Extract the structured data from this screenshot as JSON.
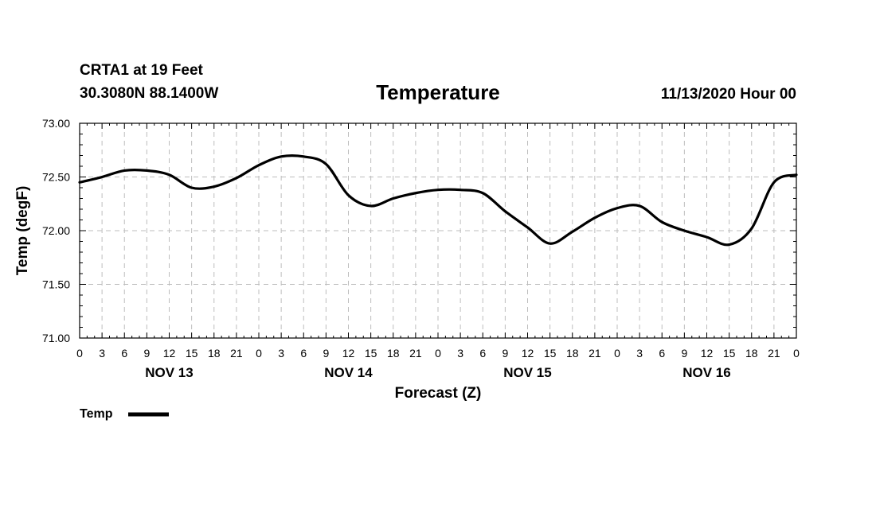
{
  "header": {
    "station": "CRTA1 at 19 Feet",
    "location": "30.3080N 88.1400W",
    "issued": "11/13/2020 Hour 00"
  },
  "chart_data": {
    "type": "line",
    "title": "Temperature",
    "xlabel": "Forecast (Z)",
    "ylabel": "Temp (degF)",
    "xlim": [
      0,
      96
    ],
    "ylim": [
      71.0,
      73.0
    ],
    "y_ticks": [
      "71.00",
      "71.50",
      "72.00",
      "72.50",
      "73.00"
    ],
    "y_tick_values": [
      71.0,
      71.5,
      72.0,
      72.5,
      73.0
    ],
    "x_ticks": [
      {
        "hour": 0,
        "label": "0"
      },
      {
        "hour": 3,
        "label": "3"
      },
      {
        "hour": 6,
        "label": "6"
      },
      {
        "hour": 9,
        "label": "9"
      },
      {
        "hour": 12,
        "label": "12"
      },
      {
        "hour": 15,
        "label": "15"
      },
      {
        "hour": 18,
        "label": "18"
      },
      {
        "hour": 21,
        "label": "21"
      },
      {
        "hour": 24,
        "label": "0"
      },
      {
        "hour": 27,
        "label": "3"
      },
      {
        "hour": 30,
        "label": "6"
      },
      {
        "hour": 33,
        "label": "9"
      },
      {
        "hour": 36,
        "label": "12"
      },
      {
        "hour": 39,
        "label": "15"
      },
      {
        "hour": 42,
        "label": "18"
      },
      {
        "hour": 45,
        "label": "21"
      },
      {
        "hour": 48,
        "label": "0"
      },
      {
        "hour": 51,
        "label": "3"
      },
      {
        "hour": 54,
        "label": "6"
      },
      {
        "hour": 57,
        "label": "9"
      },
      {
        "hour": 60,
        "label": "12"
      },
      {
        "hour": 63,
        "label": "15"
      },
      {
        "hour": 66,
        "label": "18"
      },
      {
        "hour": 69,
        "label": "21"
      },
      {
        "hour": 72,
        "label": "0"
      },
      {
        "hour": 75,
        "label": "3"
      },
      {
        "hour": 78,
        "label": "6"
      },
      {
        "hour": 81,
        "label": "9"
      },
      {
        "hour": 84,
        "label": "12"
      },
      {
        "hour": 87,
        "label": "15"
      },
      {
        "hour": 90,
        "label": "18"
      },
      {
        "hour": 93,
        "label": "21"
      },
      {
        "hour": 96,
        "label": "0"
      }
    ],
    "day_labels": [
      {
        "hour": 12,
        "label": "NOV 13"
      },
      {
        "hour": 36,
        "label": "NOV 14"
      },
      {
        "hour": 60,
        "label": "NOV 15"
      },
      {
        "hour": 84,
        "label": "NOV 16"
      }
    ],
    "grid": true,
    "legend": {
      "position": "bottom-left",
      "entries": [
        "Temp"
      ]
    },
    "series": [
      {
        "name": "Temp",
        "color": "#000000",
        "x": [
          0,
          3,
          6,
          9,
          12,
          15,
          18,
          21,
          24,
          27,
          30,
          33,
          36,
          39,
          42,
          45,
          48,
          51,
          54,
          57,
          60,
          63,
          66,
          69,
          72,
          75,
          78,
          81,
          84,
          87,
          90,
          93,
          96
        ],
        "values": [
          72.45,
          72.5,
          72.56,
          72.56,
          72.52,
          72.4,
          72.41,
          72.49,
          72.61,
          72.69,
          72.69,
          72.62,
          72.33,
          72.23,
          72.3,
          72.35,
          72.38,
          72.38,
          72.35,
          72.18,
          72.03,
          71.88,
          71.99,
          72.12,
          72.21,
          72.23,
          72.08,
          72.0,
          71.94,
          71.87,
          72.02,
          72.45,
          72.52
        ]
      }
    ]
  }
}
